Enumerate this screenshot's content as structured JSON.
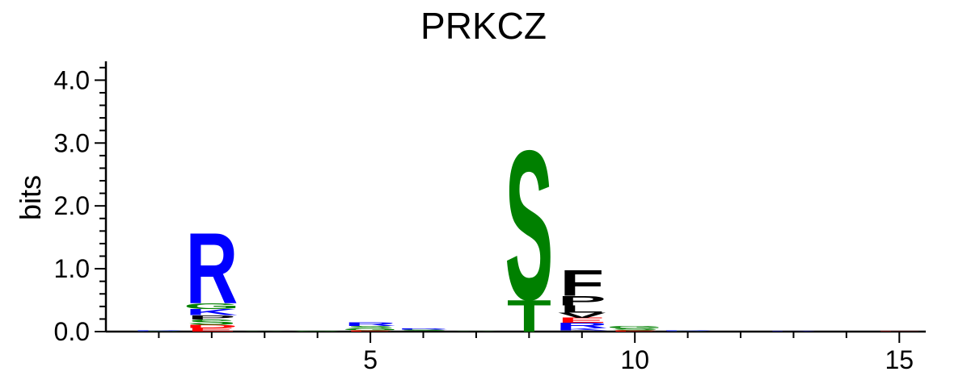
{
  "chart_data": {
    "type": "sequence-logo",
    "title": "PRKCZ",
    "ylabel": "bits",
    "xlabel": "",
    "ylim": [
      0,
      4.3
    ],
    "xlim": [
      0,
      15.5
    ],
    "y_ticks": [
      "0.0",
      "1.0",
      "2.0",
      "3.0",
      "4.0"
    ],
    "x_ticks": [
      "5",
      "10",
      "15"
    ],
    "colors": {
      "R": "#0000ff",
      "K": "#0000ff",
      "H": "#0000ff",
      "S": "#008000",
      "T": "#008000",
      "G": "#008000",
      "F": "#000000",
      "P": "#000000",
      "L": "#000000",
      "A": "#000000",
      "V": "#000000",
      "I": "#000000",
      "E": "#ff0000",
      "D": "#ff0000"
    },
    "positions": [
      {
        "pos": 1,
        "letters": [
          [
            "G",
            0.004
          ],
          [
            "S",
            0.004
          ],
          [
            "K",
            0.004
          ],
          [
            "E",
            0.003
          ],
          [
            "R",
            0.004
          ]
        ]
      },
      {
        "pos": 2,
        "letters": [
          [
            "E",
            0.06
          ],
          [
            "D",
            0.05
          ],
          [
            "S",
            0.08
          ],
          [
            "P",
            0.07
          ],
          [
            "K",
            0.1
          ],
          [
            "G",
            0.09
          ],
          [
            "R",
            1.15
          ]
        ]
      },
      {
        "pos": 3,
        "letters": [
          [
            "A",
            0.003
          ],
          [
            "S",
            0.004
          ],
          [
            "L",
            0.003
          ]
        ]
      },
      {
        "pos": 4,
        "letters": [
          [
            "G",
            0.004
          ],
          [
            "A",
            0.004
          ],
          [
            "S",
            0.005
          ]
        ]
      },
      {
        "pos": 5,
        "letters": [
          [
            "E",
            0.02
          ],
          [
            "G",
            0.03
          ],
          [
            "S",
            0.04
          ],
          [
            "R",
            0.06
          ]
        ]
      },
      {
        "pos": 6,
        "letters": [
          [
            "P",
            0.015
          ],
          [
            "S",
            0.02
          ],
          [
            "R",
            0.02
          ]
        ]
      },
      {
        "pos": 7,
        "letters": [
          [
            "S",
            0.004
          ],
          [
            "G",
            0.003
          ]
        ]
      },
      {
        "pos": 8,
        "letters": [
          [
            "T",
            0.52
          ],
          [
            "S",
            2.43
          ]
        ]
      },
      {
        "pos": 9,
        "letters": [
          [
            "A",
            0.02
          ],
          [
            "K",
            0.04
          ],
          [
            "R",
            0.08
          ],
          [
            "E",
            0.08
          ],
          [
            "V",
            0.08
          ],
          [
            "L",
            0.12
          ],
          [
            "P",
            0.15
          ],
          [
            "F",
            0.42
          ]
        ]
      },
      {
        "pos": 10,
        "letters": [
          [
            "E",
            0.02
          ],
          [
            "S",
            0.03
          ],
          [
            "G",
            0.04
          ]
        ]
      },
      {
        "pos": 11,
        "letters": [
          [
            "S",
            0.006
          ],
          [
            "K",
            0.007
          ],
          [
            "R",
            0.008
          ]
        ]
      },
      {
        "pos": 12,
        "letters": [
          [
            "G",
            0.003
          ],
          [
            "S",
            0.003
          ]
        ]
      },
      {
        "pos": 13,
        "letters": [
          [
            "A",
            0.004
          ],
          [
            "R",
            0.005
          ]
        ]
      },
      {
        "pos": 14,
        "letters": [
          [
            "E",
            0.003
          ]
        ]
      },
      {
        "pos": 15,
        "letters": [
          [
            "E",
            0.004
          ]
        ]
      }
    ]
  }
}
